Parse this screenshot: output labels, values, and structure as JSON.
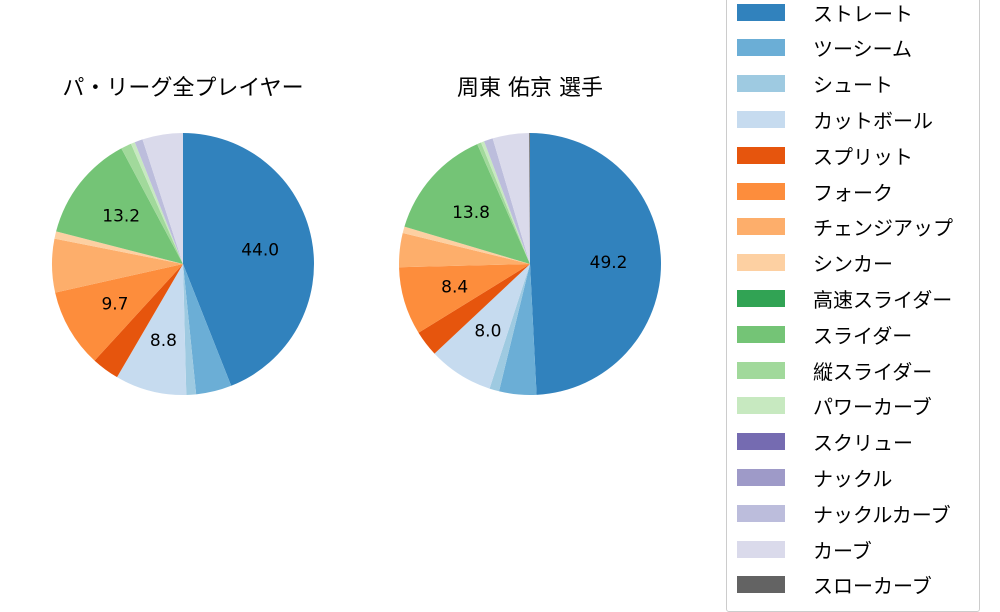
{
  "chart_data": {
    "type": "pie",
    "legend": {
      "position": "right",
      "entries": [
        {
          "label": "ストレート",
          "color": "#3182bd"
        },
        {
          "label": "ツーシーム",
          "color": "#6baed6"
        },
        {
          "label": "シュート",
          "color": "#9ecae1"
        },
        {
          "label": "カットボール",
          "color": "#c6dbef"
        },
        {
          "label": "スプリット",
          "color": "#e6550d"
        },
        {
          "label": "フォーク",
          "color": "#fd8d3c"
        },
        {
          "label": "チェンジアップ",
          "color": "#fdae6b"
        },
        {
          "label": "シンカー",
          "color": "#fdd0a2"
        },
        {
          "label": "高速スライダー",
          "color": "#31a354"
        },
        {
          "label": "スライダー",
          "color": "#74c476"
        },
        {
          "label": "縦スライダー",
          "color": "#a1d99b"
        },
        {
          "label": "パワーカーブ",
          "color": "#c7e9c0"
        },
        {
          "label": "スクリュー",
          "color": "#756bb1"
        },
        {
          "label": "ナックル",
          "color": "#9e9ac8"
        },
        {
          "label": "ナックルカーブ",
          "color": "#bcbddc"
        },
        {
          "label": "カーブ",
          "color": "#dadaeb"
        },
        {
          "label": "スローカーブ",
          "color": "#636363"
        }
      ]
    },
    "charts": [
      {
        "title": "パ・リーグ全プレイヤー",
        "categories": [
          "ストレート",
          "ツーシーム",
          "シュート",
          "カットボール",
          "スプリット",
          "フォーク",
          "チェンジアップ",
          "シンカー",
          "高速スライダー",
          "スライダー",
          "縦スライダー",
          "パワーカーブ",
          "スクリュー",
          "ナックル",
          "ナックルカーブ",
          "カーブ",
          "スローカーブ"
        ],
        "values": [
          44.0,
          4.4,
          1.2,
          8.8,
          3.4,
          9.7,
          6.6,
          0.9,
          0.0,
          13.2,
          1.3,
          0.5,
          0.0,
          0.0,
          1.0,
          5.0,
          0.0
        ],
        "labels_shown": {
          "ストレート": "44.0",
          "カットボール": "8.8",
          "フォーク": "9.7",
          "スライダー": "13.2"
        }
      },
      {
        "title": "周東 佑京  選手",
        "categories": [
          "ストレート",
          "ツーシーム",
          "シュート",
          "カットボール",
          "スプリット",
          "フォーク",
          "チェンジアップ",
          "シンカー",
          "高速スライダー",
          "スライダー",
          "縦スライダー",
          "パワーカーブ",
          "スクリュー",
          "ナックル",
          "ナックルカーブ",
          "カーブ",
          "スローカーブ"
        ],
        "values": [
          49.2,
          4.6,
          1.2,
          8.0,
          3.2,
          8.4,
          4.2,
          0.8,
          0.0,
          13.8,
          0.5,
          0.4,
          0.0,
          0.0,
          1.1,
          4.5,
          0.1
        ],
        "labels_shown": {
          "ストレート": "49.2",
          "カットボール": "8.0",
          "フォーク": "8.4",
          "スライダー": "13.8"
        }
      }
    ]
  }
}
